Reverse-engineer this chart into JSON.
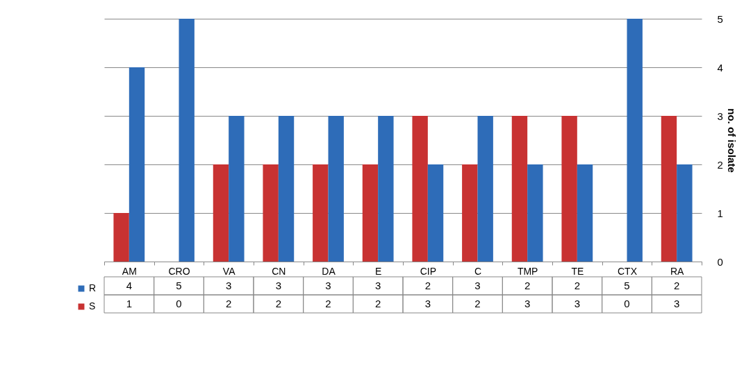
{
  "chart_data": {
    "type": "bar",
    "ylabel": "no. of isolate",
    "categories": [
      "AM",
      "CRO",
      "VA",
      "CN",
      "DA",
      "E",
      "CIP",
      "C",
      "TMP",
      "TE",
      "CTX",
      "RA"
    ],
    "series": [
      {
        "name": "S",
        "color": "#c83232",
        "values": [
          1,
          0,
          2,
          2,
          2,
          2,
          3,
          2,
          3,
          3,
          0,
          3
        ]
      },
      {
        "name": "R",
        "color": "#2e6cb8",
        "values": [
          4,
          5,
          3,
          3,
          3,
          3,
          2,
          3,
          2,
          2,
          5,
          2
        ]
      }
    ],
    "ylim": [
      0,
      5
    ],
    "yticks": [
      0,
      1,
      2,
      3,
      4,
      5
    ],
    "grid": "y",
    "legend": "bottom left",
    "data_labels": true
  }
}
